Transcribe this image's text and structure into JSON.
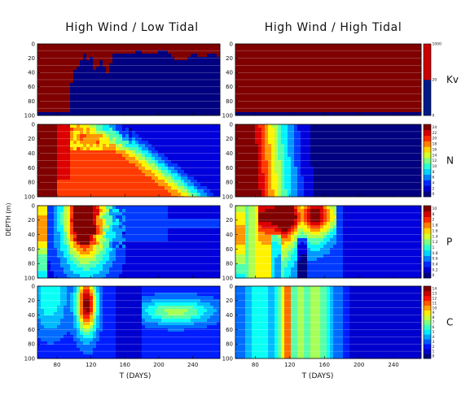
{
  "chart_data": {
    "type": "heatmap",
    "column_titles": [
      "High Wind / Low Tidal",
      "High Wind / High Tidal"
    ],
    "ylabel": "DEPTH (m)",
    "xlabel": "T (DAYS)",
    "xlim": [
      57,
      272
    ],
    "ylim": [
      0,
      100
    ],
    "x_ticks": [
      "80",
      "120",
      "160",
      "200",
      "240"
    ],
    "y_ticks": [
      "0",
      "20",
      "40",
      "60",
      "80",
      "100"
    ],
    "rows": [
      {
        "variable": "Kv",
        "colorbar_labels": [
          "0",
          "20",
          "1000"
        ]
      },
      {
        "variable": "N",
        "colorbar_labels": [
          "0",
          "2",
          "4",
          "6",
          "8",
          "10",
          "12",
          "14",
          "16",
          "18",
          "20",
          "22",
          "24"
        ]
      },
      {
        "variable": "P",
        "colorbar_labels": [
          "0",
          "0.2",
          "0.4",
          "0.6",
          "0.8",
          "1",
          "1.2",
          "1.4",
          "1.6",
          "1.8",
          "2",
          "8",
          "10"
        ]
      },
      {
        "variable": "C",
        "colorbar_labels": [
          "0",
          "1",
          "2",
          "3",
          "4",
          "5",
          "6",
          "7",
          "8",
          "9",
          "10",
          "11",
          "12",
          "13",
          "14"
        ]
      }
    ],
    "fields": {
      "Kv_low_tidal": {
        "description_values": "mixed-layer depth (m) vs day",
        "day": [
          57,
          95,
          98,
          104,
          110,
          114,
          118,
          121,
          126,
          130,
          134,
          140,
          148,
          160,
          175,
          190,
          205,
          215,
          225,
          240,
          255,
          265,
          272
        ],
        "mld": [
          96,
          96,
          40,
          32,
          18,
          14,
          30,
          15,
          48,
          20,
          25,
          42,
          12,
          15,
          10,
          16,
          8,
          16,
          25,
          15,
          18,
          12,
          18
        ]
      },
      "Kv_high_tidal": {
        "mld": 96
      },
      "N_high_tidal": {
        "value_profile_vs_day": [
          [
            57,
            24
          ],
          [
            80,
            22
          ],
          [
            90,
            18
          ],
          [
            100,
            14
          ],
          [
            110,
            10
          ],
          [
            120,
            7
          ],
          [
            130,
            4
          ],
          [
            145,
            1.5
          ],
          [
            160,
            0.4
          ]
        ]
      },
      "C_high_tidal_bands": [
        [
          57,
          4
        ],
        [
          65,
          3
        ],
        [
          75,
          5
        ],
        [
          88,
          6
        ],
        [
          100,
          4
        ],
        [
          110,
          7
        ],
        [
          118,
          12
        ],
        [
          124,
          6
        ],
        [
          130,
          8
        ],
        [
          140,
          6
        ],
        [
          150,
          8
        ],
        [
          162,
          6
        ],
        [
          172,
          4
        ],
        [
          182,
          3
        ],
        [
          192,
          1.5
        ]
      ]
    }
  },
  "colors": {
    "kv_high": "#cc0000",
    "kv_low": "#001a8a"
  }
}
